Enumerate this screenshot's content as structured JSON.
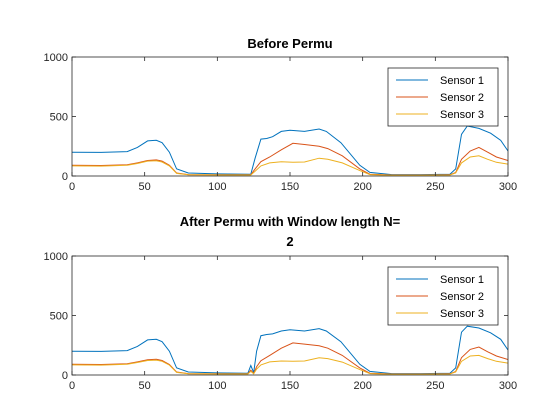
{
  "chart_data": [
    {
      "type": "line",
      "title_lines": [
        "Before Permu"
      ],
      "xlim": [
        0,
        300
      ],
      "ylim": [
        0,
        1000
      ],
      "xticks": [
        0,
        50,
        100,
        150,
        200,
        250,
        300
      ],
      "yticks": [
        0,
        500,
        1000
      ],
      "grid": false,
      "legend_position": "top-right",
      "series": [
        {
          "name": "Sensor 1",
          "color": "#0072BD",
          "points": [
            [
              0,
              200
            ],
            [
              20,
              198
            ],
            [
              38,
              205
            ],
            [
              45,
              240
            ],
            [
              52,
              295
            ],
            [
              58,
              300
            ],
            [
              62,
              280
            ],
            [
              67,
              200
            ],
            [
              72,
              60
            ],
            [
              80,
              25
            ],
            [
              100,
              18
            ],
            [
              123,
              15
            ],
            [
              126,
              150
            ],
            [
              130,
              310
            ],
            [
              134,
              315
            ],
            [
              138,
              330
            ],
            [
              144,
              375
            ],
            [
              150,
              385
            ],
            [
              160,
              375
            ],
            [
              170,
              395
            ],
            [
              175,
              375
            ],
            [
              185,
              280
            ],
            [
              198,
              90
            ],
            [
              205,
              30
            ],
            [
              220,
              12
            ],
            [
              240,
              12
            ],
            [
              260,
              15
            ],
            [
              264,
              60
            ],
            [
              268,
              350
            ],
            [
              272,
              420
            ],
            [
              280,
              400
            ],
            [
              288,
              360
            ],
            [
              295,
              300
            ],
            [
              300,
              210
            ]
          ]
        },
        {
          "name": "Sensor 2",
          "color": "#D95319",
          "points": [
            [
              0,
              90
            ],
            [
              20,
              88
            ],
            [
              38,
              95
            ],
            [
              45,
              110
            ],
            [
              52,
              130
            ],
            [
              58,
              135
            ],
            [
              62,
              125
            ],
            [
              67,
              90
            ],
            [
              72,
              25
            ],
            [
              80,
              12
            ],
            [
              100,
              10
            ],
            [
              123,
              10
            ],
            [
              126,
              60
            ],
            [
              130,
              120
            ],
            [
              136,
              160
            ],
            [
              144,
              220
            ],
            [
              152,
              275
            ],
            [
              160,
              265
            ],
            [
              170,
              250
            ],
            [
              176,
              230
            ],
            [
              186,
              170
            ],
            [
              198,
              60
            ],
            [
              205,
              15
            ],
            [
              220,
              8
            ],
            [
              240,
              8
            ],
            [
              260,
              10
            ],
            [
              264,
              30
            ],
            [
              268,
              140
            ],
            [
              274,
              210
            ],
            [
              280,
              240
            ],
            [
              286,
              200
            ],
            [
              292,
              160
            ],
            [
              300,
              130
            ]
          ]
        },
        {
          "name": "Sensor 3",
          "color": "#EDB120",
          "points": [
            [
              0,
              85
            ],
            [
              20,
              83
            ],
            [
              38,
              90
            ],
            [
              45,
              105
            ],
            [
              52,
              125
            ],
            [
              58,
              128
            ],
            [
              62,
              118
            ],
            [
              67,
              85
            ],
            [
              72,
              22
            ],
            [
              80,
              10
            ],
            [
              100,
              8
            ],
            [
              123,
              8
            ],
            [
              126,
              40
            ],
            [
              130,
              85
            ],
            [
              136,
              110
            ],
            [
              144,
              120
            ],
            [
              152,
              115
            ],
            [
              160,
              118
            ],
            [
              170,
              150
            ],
            [
              176,
              140
            ],
            [
              186,
              110
            ],
            [
              198,
              45
            ],
            [
              205,
              12
            ],
            [
              220,
              6
            ],
            [
              240,
              6
            ],
            [
              260,
              8
            ],
            [
              264,
              25
            ],
            [
              268,
              110
            ],
            [
              274,
              160
            ],
            [
              280,
              170
            ],
            [
              286,
              140
            ],
            [
              292,
              115
            ],
            [
              300,
              100
            ]
          ]
        }
      ]
    },
    {
      "type": "line",
      "title_lines": [
        "After Permu with Window length N=",
        "2"
      ],
      "xlim": [
        0,
        300
      ],
      "ylim": [
        0,
        1000
      ],
      "xticks": [
        0,
        50,
        100,
        150,
        200,
        250,
        300
      ],
      "yticks": [
        0,
        500,
        1000
      ],
      "grid": false,
      "legend_position": "top-right",
      "series": [
        {
          "name": "Sensor 1",
          "color": "#0072BD",
          "points": [
            [
              0,
              200
            ],
            [
              20,
              198
            ],
            [
              38,
              205
            ],
            [
              45,
              240
            ],
            [
              52,
              295
            ],
            [
              58,
              300
            ],
            [
              62,
              280
            ],
            [
              67,
              200
            ],
            [
              72,
              60
            ],
            [
              80,
              25
            ],
            [
              100,
              18
            ],
            [
              121,
              15
            ],
            [
              123,
              80
            ],
            [
              125,
              20
            ],
            [
              127,
              200
            ],
            [
              130,
              330
            ],
            [
              134,
              340
            ],
            [
              138,
              345
            ],
            [
              144,
              370
            ],
            [
              150,
              380
            ],
            [
              160,
              370
            ],
            [
              170,
              390
            ],
            [
              175,
              370
            ],
            [
              185,
              280
            ],
            [
              198,
              90
            ],
            [
              205,
              30
            ],
            [
              220,
              12
            ],
            [
              240,
              12
            ],
            [
              260,
              15
            ],
            [
              264,
              60
            ],
            [
              268,
              360
            ],
            [
              272,
              410
            ],
            [
              280,
              395
            ],
            [
              288,
              355
            ],
            [
              295,
              300
            ],
            [
              300,
              210
            ]
          ]
        },
        {
          "name": "Sensor 2",
          "color": "#D95319",
          "points": [
            [
              0,
              90
            ],
            [
              20,
              88
            ],
            [
              38,
              95
            ],
            [
              45,
              110
            ],
            [
              52,
              128
            ],
            [
              58,
              132
            ],
            [
              62,
              122
            ],
            [
              67,
              88
            ],
            [
              72,
              25
            ],
            [
              80,
              12
            ],
            [
              100,
              10
            ],
            [
              121,
              10
            ],
            [
              123,
              40
            ],
            [
              125,
              12
            ],
            [
              127,
              70
            ],
            [
              130,
              120
            ],
            [
              136,
              165
            ],
            [
              144,
              225
            ],
            [
              152,
              270
            ],
            [
              160,
              260
            ],
            [
              170,
              245
            ],
            [
              176,
              225
            ],
            [
              186,
              165
            ],
            [
              198,
              60
            ],
            [
              205,
              15
            ],
            [
              220,
              8
            ],
            [
              240,
              8
            ],
            [
              260,
              10
            ],
            [
              264,
              30
            ],
            [
              268,
              145
            ],
            [
              274,
              215
            ],
            [
              280,
              235
            ],
            [
              286,
              195
            ],
            [
              292,
              160
            ],
            [
              300,
              130
            ]
          ]
        },
        {
          "name": "Sensor 3",
          "color": "#EDB120",
          "points": [
            [
              0,
              85
            ],
            [
              20,
              83
            ],
            [
              38,
              90
            ],
            [
              45,
              105
            ],
            [
              52,
              122
            ],
            [
              58,
              125
            ],
            [
              62,
              115
            ],
            [
              67,
              83
            ],
            [
              72,
              22
            ],
            [
              80,
              10
            ],
            [
              100,
              8
            ],
            [
              121,
              8
            ],
            [
              123,
              30
            ],
            [
              125,
              10
            ],
            [
              127,
              50
            ],
            [
              130,
              85
            ],
            [
              136,
              110
            ],
            [
              144,
              118
            ],
            [
              152,
              115
            ],
            [
              160,
              118
            ],
            [
              170,
              145
            ],
            [
              176,
              138
            ],
            [
              186,
              108
            ],
            [
              198,
              45
            ],
            [
              205,
              12
            ],
            [
              220,
              6
            ],
            [
              240,
              6
            ],
            [
              260,
              8
            ],
            [
              264,
              25
            ],
            [
              268,
              115
            ],
            [
              274,
              160
            ],
            [
              280,
              165
            ],
            [
              286,
              138
            ],
            [
              292,
              115
            ],
            [
              300,
              100
            ]
          ]
        }
      ]
    }
  ]
}
